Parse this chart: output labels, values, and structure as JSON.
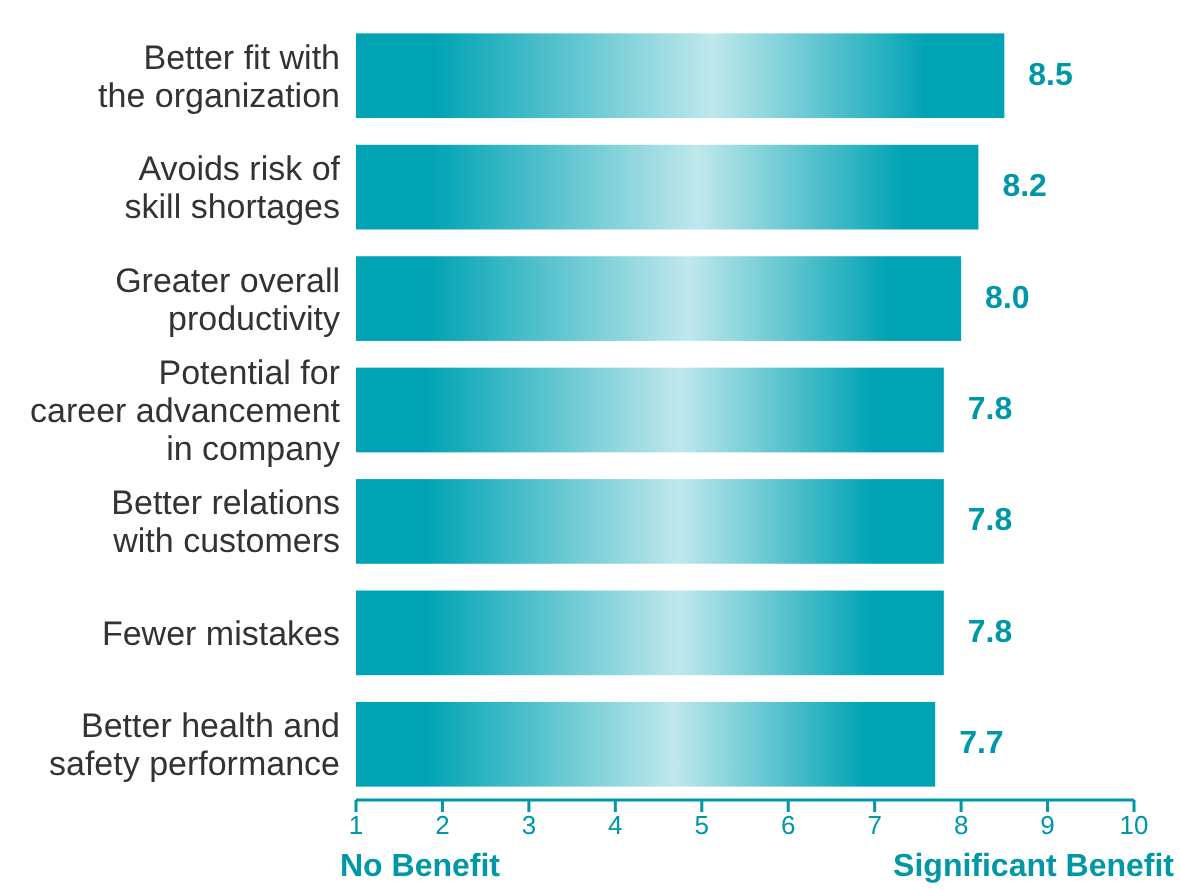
{
  "chart_data": {
    "type": "bar",
    "orientation": "horizontal",
    "categories": [
      "Better fit with\nthe organization",
      "Avoids risk of\nskill shortages",
      "Greater overall\nproductivity",
      "Potential for\ncareer advancement\nin company",
      "Better relations\nwith customers",
      "Fewer mistakes",
      "Better health and\nsafety performance"
    ],
    "values": [
      8.5,
      8.2,
      8.0,
      7.8,
      7.8,
      7.8,
      7.7
    ],
    "value_labels": [
      "8.5",
      "8.2",
      "8.0",
      "7.8",
      "7.8",
      "7.8",
      "7.7"
    ],
    "color": "#00a3b4",
    "xlim": [
      1,
      10
    ],
    "xticks": [
      1,
      2,
      3,
      4,
      5,
      6,
      7,
      8,
      9,
      10
    ],
    "annotations": [
      "No Benefit",
      "Significant Benefit"
    ]
  }
}
